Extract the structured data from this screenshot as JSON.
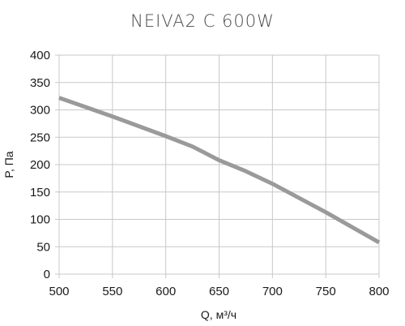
{
  "chart_data": {
    "type": "line",
    "title": "NEIVA2 C 600W",
    "xlabel": "Q, м³/ч",
    "ylabel": "P, Па",
    "xlim": [
      500,
      800
    ],
    "ylim": [
      0,
      400
    ],
    "x_ticks": [
      500,
      550,
      600,
      650,
      700,
      750,
      800
    ],
    "y_ticks": [
      0,
      50,
      100,
      150,
      200,
      250,
      300,
      350,
      400
    ],
    "grid": true,
    "legend": "none",
    "series": [
      {
        "color": "#9a9a9a",
        "x": [
          500,
          550,
          600,
          625,
          640,
          650,
          675,
          700,
          750,
          800
        ],
        "y": [
          322,
          288,
          252,
          233,
          218,
          208,
          188,
          165,
          113,
          58
        ]
      }
    ]
  }
}
